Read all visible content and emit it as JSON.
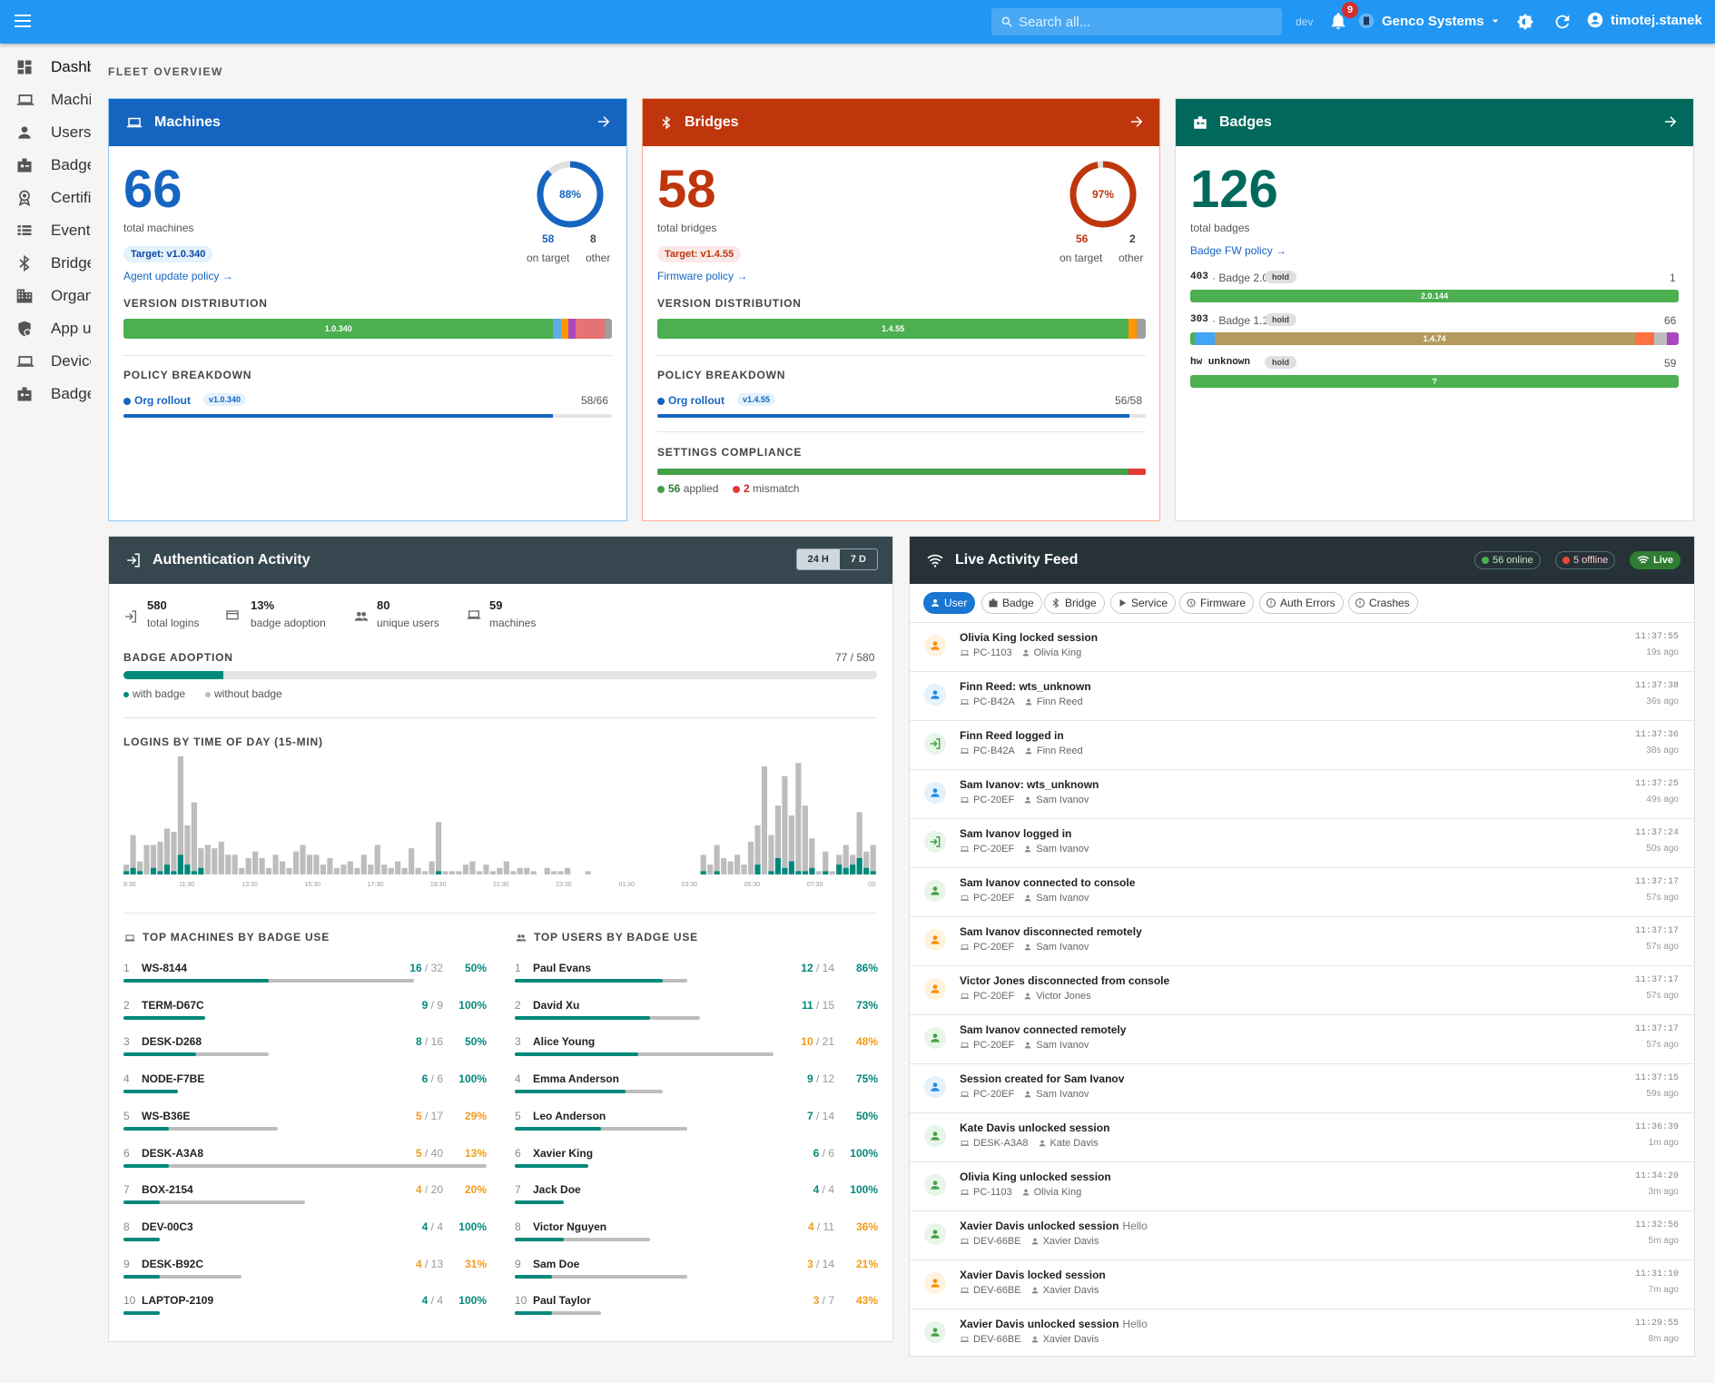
{
  "appbar": {
    "search_placeholder": "Search all...",
    "env": "dev",
    "notifications": "9",
    "org": "Genco Systems",
    "user": "timotej.stanek"
  },
  "sidebar": [
    {
      "label": "Dashboard",
      "icon": "dashboard-icon"
    },
    {
      "label": "Machines",
      "icon": "laptop-icon"
    },
    {
      "label": "Users",
      "icon": "person-icon"
    },
    {
      "label": "Badges",
      "icon": "badge-icon"
    },
    {
      "label": "Certificates",
      "icon": "certificate-icon"
    },
    {
      "label": "Events",
      "icon": "list-icon"
    },
    {
      "label": "Bridges",
      "icon": "bluetooth-icon"
    },
    {
      "label": "Organizations",
      "icon": "building-icon"
    },
    {
      "label": "App users",
      "icon": "shield-person-icon"
    },
    {
      "label": "Devices",
      "icon": "laptop-icon"
    },
    {
      "label": "Badges",
      "icon": "badge-icon"
    }
  ],
  "section_title": "FLEET OVERVIEW",
  "machines": {
    "title": "Machines",
    "total": "66",
    "total_label": "total machines",
    "percent": "88%",
    "percent_value": 0.88,
    "on_target": "58",
    "on_target_label": "on target",
    "other": "8",
    "other_label": "other",
    "target": "Target: v1.0.340",
    "policy_link": "Agent update policy →",
    "version_label": "VERSION DISTRIBUTION",
    "version_bar": "1.0.340",
    "policy_label": "POLICY BREAKDOWN",
    "policy_name": "Org rollout",
    "policy_version": "v1.0.340",
    "policy_count": "58/66",
    "policy_fraction": 0.879
  },
  "bridges": {
    "title": "Bridges",
    "total": "58",
    "total_label": "total bridges",
    "percent": "97%",
    "percent_value": 0.97,
    "on_target": "56",
    "on_target_label": "on target",
    "other": "2",
    "other_label": "other",
    "target": "Target: v1.4.55",
    "policy_link": "Firmware policy →",
    "version_label": "VERSION DISTRIBUTION",
    "version_bar": "1.4.55",
    "policy_label": "POLICY BREAKDOWN",
    "policy_name": "Org rollout",
    "policy_version": "v1.4.55",
    "policy_count": "56/58",
    "policy_fraction": 0.966,
    "settings_label": "SETTINGS COMPLIANCE",
    "applied": "56",
    "applied_label": "applied",
    "mismatch": "2",
    "mismatch_label": "mismatch"
  },
  "badges": {
    "title": "Badges",
    "total": "126",
    "total_label": "total badges",
    "policy_link": "Badge FW policy →",
    "rows": [
      {
        "code": "403",
        "name": "· Badge 2.0",
        "tag": "hold",
        "count": "1",
        "bar": "2.0.144"
      },
      {
        "code": "303",
        "name": "· Badge 1.1",
        "tag": "hold",
        "count": "66",
        "bar": "1.4.74"
      },
      {
        "code": "hw unknown",
        "name": "",
        "tag": "hold",
        "count": "59",
        "bar": "?"
      }
    ]
  },
  "auth": {
    "title": "Authentication Activity",
    "range_24h": "24 H",
    "range_7d": "7 D",
    "stats": [
      {
        "num": "580",
        "label": "total logins"
      },
      {
        "num": "13%",
        "label": "badge adoption"
      },
      {
        "num": "80",
        "label": "unique users"
      },
      {
        "num": "59",
        "label": "machines"
      }
    ],
    "adoption_label": "BADGE ADOPTION",
    "adoption_count": "77 / 580",
    "adoption_fraction": 0.133,
    "legend_with": "with badge",
    "legend_without": "without badge",
    "chart_label": "LOGINS BY TIME OF DAY (15-MIN)",
    "machines_label": "TOP MACHINES BY BADGE USE",
    "users_label": "TOP USERS BY BADGE USE",
    "top_machines": [
      {
        "rank": "1",
        "name": "WS-8144",
        "badge": "16",
        "total": "32",
        "pct": "50%"
      },
      {
        "rank": "2",
        "name": "TERM-D67C",
        "badge": "9",
        "total": "9",
        "pct": "100%"
      },
      {
        "rank": "3",
        "name": "DESK-D268",
        "badge": "8",
        "total": "16",
        "pct": "50%"
      },
      {
        "rank": "4",
        "name": "NODE-F7BE",
        "badge": "6",
        "total": "6",
        "pct": "100%"
      },
      {
        "rank": "5",
        "name": "WS-B36E",
        "badge": "5",
        "total": "17",
        "pct": "29%"
      },
      {
        "rank": "6",
        "name": "DESK-A3A8",
        "badge": "5",
        "total": "40",
        "pct": "13%"
      },
      {
        "rank": "7",
        "name": "BOX-2154",
        "badge": "4",
        "total": "20",
        "pct": "20%"
      },
      {
        "rank": "8",
        "name": "DEV-00C3",
        "badge": "4",
        "total": "4",
        "pct": "100%"
      },
      {
        "rank": "9",
        "name": "DESK-B92C",
        "badge": "4",
        "total": "13",
        "pct": "31%"
      },
      {
        "rank": "10",
        "name": "LAPTOP-2109",
        "badge": "4",
        "total": "4",
        "pct": "100%"
      }
    ],
    "top_users": [
      {
        "rank": "1",
        "name": "Paul Evans",
        "badge": "12",
        "total": "14",
        "pct": "86%"
      },
      {
        "rank": "2",
        "name": "David Xu",
        "badge": "11",
        "total": "15",
        "pct": "73%"
      },
      {
        "rank": "3",
        "name": "Alice Young",
        "badge": "10",
        "total": "21",
        "pct": "48%"
      },
      {
        "rank": "4",
        "name": "Emma Anderson",
        "badge": "9",
        "total": "12",
        "pct": "75%"
      },
      {
        "rank": "5",
        "name": "Leo Anderson",
        "badge": "7",
        "total": "14",
        "pct": "50%"
      },
      {
        "rank": "6",
        "name": "Xavier King",
        "badge": "6",
        "total": "6",
        "pct": "100%"
      },
      {
        "rank": "7",
        "name": "Jack Doe",
        "badge": "4",
        "total": "4",
        "pct": "100%"
      },
      {
        "rank": "8",
        "name": "Victor Nguyen",
        "badge": "4",
        "total": "11",
        "pct": "36%"
      },
      {
        "rank": "9",
        "name": "Sam Doe",
        "badge": "3",
        "total": "14",
        "pct": "21%"
      },
      {
        "rank": "10",
        "name": "Paul Taylor",
        "badge": "3",
        "total": "7",
        "pct": "43%"
      }
    ]
  },
  "chart_data": {
    "type": "bar",
    "title": "LOGINS BY TIME OF DAY (15-MIN)",
    "x_tick_labels": [
      "9:30",
      "11:30",
      "13:30",
      "15:30",
      "17:30",
      "19:30",
      "21:30",
      "23:30",
      "01:30",
      "03:30",
      "05:30",
      "07:30",
      "09:3"
    ],
    "series": [
      {
        "name": "with badge",
        "values": [
          1,
          2,
          1,
          0,
          2,
          1,
          3,
          1,
          6,
          3,
          1,
          2,
          0,
          0,
          0,
          0,
          0,
          0,
          0,
          0,
          0,
          0,
          0,
          0,
          0,
          0,
          0,
          0,
          0,
          0,
          0,
          0,
          0,
          0,
          0,
          0,
          0,
          0,
          0,
          0,
          0,
          0,
          0,
          0,
          0,
          0,
          1,
          0,
          0,
          0,
          0,
          0,
          0,
          0,
          0,
          0,
          0,
          0,
          0,
          0,
          0,
          0,
          0,
          0,
          0,
          0,
          0,
          0,
          0,
          0,
          0,
          0,
          0,
          0,
          0,
          0,
          0,
          0,
          0,
          0,
          0,
          0,
          0,
          0,
          0,
          1,
          0,
          1,
          0,
          0,
          0,
          0,
          0,
          3,
          0,
          1,
          5,
          2,
          4,
          1,
          1,
          2,
          0,
          1,
          0,
          3,
          2,
          3,
          5,
          2,
          1
        ]
      },
      {
        "name": "without badge",
        "values": [
          2,
          10,
          3,
          9,
          7,
          9,
          11,
          12,
          35,
          12,
          21,
          6,
          9,
          8,
          10,
          6,
          6,
          2,
          5,
          7,
          5,
          2,
          6,
          4,
          2,
          7,
          9,
          6,
          6,
          3,
          5,
          2,
          3,
          4,
          2,
          6,
          3,
          9,
          3,
          2,
          4,
          2,
          8,
          2,
          1,
          4,
          15,
          1,
          1,
          1,
          3,
          4,
          1,
          3,
          1,
          2,
          4,
          1,
          2,
          2,
          1,
          0,
          2,
          1,
          1,
          2,
          0,
          0,
          1,
          0,
          0,
          0,
          0,
          0,
          0,
          0,
          0,
          0,
          0,
          0,
          0,
          0,
          0,
          0,
          0,
          5,
          3,
          8,
          5,
          4,
          6,
          3,
          10,
          12,
          33,
          11,
          16,
          28,
          14,
          33,
          20,
          9,
          1,
          6,
          1,
          3,
          7,
          3,
          14,
          5,
          8
        ]
      }
    ]
  },
  "feed": {
    "title": "Live Activity Feed",
    "online": "56 online",
    "offline": "5 offline",
    "live": "Live",
    "filters": [
      "User",
      "Badge",
      "Bridge",
      "Service",
      "Firmware",
      "Auth Errors",
      "Crashes"
    ],
    "items": [
      {
        "title": "Olivia King locked session",
        "extra": "",
        "machine": "PC-1103",
        "user": "Olivia King",
        "time": "11:37:55",
        "ago": "19s ago",
        "kind": "orange"
      },
      {
        "title": "Finn Reed: wts_unknown",
        "extra": "",
        "machine": "PC-B42A",
        "user": "Finn Reed",
        "time": "11:37:38",
        "ago": "36s ago",
        "kind": "blue"
      },
      {
        "title": "Finn Reed logged in",
        "extra": "",
        "machine": "PC-B42A",
        "user": "Finn Reed",
        "time": "11:37:36",
        "ago": "38s ago",
        "kind": "login"
      },
      {
        "title": "Sam Ivanov: wts_unknown",
        "extra": "",
        "machine": "PC-20EF",
        "user": "Sam Ivanov",
        "time": "11:37:25",
        "ago": "49s ago",
        "kind": "blue"
      },
      {
        "title": "Sam Ivanov logged in",
        "extra": "",
        "machine": "PC-20EF",
        "user": "Sam Ivanov",
        "time": "11:37:24",
        "ago": "50s ago",
        "kind": "login"
      },
      {
        "title": "Sam Ivanov connected to console",
        "extra": "",
        "machine": "PC-20EF",
        "user": "Sam Ivanov",
        "time": "11:37:17",
        "ago": "57s ago",
        "kind": "green"
      },
      {
        "title": "Sam Ivanov disconnected remotely",
        "extra": "",
        "machine": "PC-20EF",
        "user": "Sam Ivanov",
        "time": "11:37:17",
        "ago": "57s ago",
        "kind": "orange"
      },
      {
        "title": "Victor Jones disconnected from console",
        "extra": "",
        "machine": "PC-20EF",
        "user": "Victor Jones",
        "time": "11:37:17",
        "ago": "57s ago",
        "kind": "orange"
      },
      {
        "title": "Sam Ivanov connected remotely",
        "extra": "",
        "machine": "PC-20EF",
        "user": "Sam Ivanov",
        "time": "11:37:17",
        "ago": "57s ago",
        "kind": "green"
      },
      {
        "title": "Session created for Sam Ivanov",
        "extra": "",
        "machine": "PC-20EF",
        "user": "Sam Ivanov",
        "time": "11:37:15",
        "ago": "59s ago",
        "kind": "blue"
      },
      {
        "title": "Kate Davis unlocked session",
        "extra": "",
        "machine": "DESK-A3A8",
        "user": "Kate Davis",
        "time": "11:36:39",
        "ago": "1m ago",
        "kind": "green"
      },
      {
        "title": "Olivia King unlocked session",
        "extra": "",
        "machine": "PC-1103",
        "user": "Olivia King",
        "time": "11:34:20",
        "ago": "3m ago",
        "kind": "green"
      },
      {
        "title": "Xavier Davis unlocked session",
        "extra": "Hello",
        "machine": "DEV-66BE",
        "user": "Xavier Davis",
        "time": "11:32:56",
        "ago": "5m ago",
        "kind": "green"
      },
      {
        "title": "Xavier Davis locked session",
        "extra": "",
        "machine": "DEV-66BE",
        "user": "Xavier Davis",
        "time": "11:31:10",
        "ago": "7m ago",
        "kind": "orange"
      },
      {
        "title": "Xavier Davis unlocked session",
        "extra": "Hello",
        "machine": "DEV-66BE",
        "user": "Xavier Davis",
        "time": "11:29:55",
        "ago": "8m ago",
        "kind": "green"
      }
    ]
  },
  "colors": {
    "machines": "#1565c0",
    "bridges": "#bf360c",
    "badges": "#00695c",
    "auth": "#37474f",
    "feed": "#263238",
    "teal": "#00897b"
  }
}
